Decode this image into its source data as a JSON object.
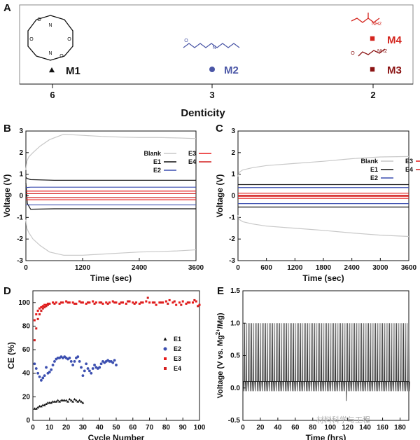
{
  "figure": {
    "watermark": "材料科学与工程",
    "colors": {
      "black": "#111111",
      "gray": "#c8c8c8",
      "navy": "#1f2a5a",
      "blue": "#4a56a6",
      "red": "#d4241d",
      "darkred": "#8b1414",
      "series_E1": "#111111",
      "series_E2": "#3c4fb0",
      "series_E3": "#e81c1c",
      "series_E4": "#d42020"
    }
  },
  "chart_data": [
    {
      "panel": "A",
      "type": "scatter",
      "title": "",
      "xlabel": "Denticity",
      "ylabel": "",
      "x_categories": [
        "6",
        "3",
        "2"
      ],
      "points": [
        {
          "name": "M1",
          "denticity": 6,
          "marker": "triangle",
          "color": "#111111"
        },
        {
          "name": "M2",
          "denticity": 3,
          "marker": "circle",
          "color": "#4a56a6"
        },
        {
          "name": "M4",
          "denticity": 2,
          "marker": "square",
          "color": "#d4241d"
        },
        {
          "name": "M3",
          "denticity": 2,
          "marker": "square",
          "color": "#8b1414"
        }
      ],
      "structure_labels": [
        "N",
        "N",
        "O",
        "O",
        "O",
        "O",
        "NH2",
        "NH2",
        "O",
        "N",
        "O"
      ]
    },
    {
      "panel": "B",
      "type": "line",
      "xlabel": "Time (sec)",
      "ylabel": "Voltage (V)",
      "xlim": [
        0,
        3600
      ],
      "ylim": [
        -3,
        3
      ],
      "xticks": [
        0,
        1200,
        2400,
        3600
      ],
      "yticks": [
        -3,
        -2,
        -1,
        0,
        1,
        2,
        3
      ],
      "legend": [
        "Blank",
        "E1",
        "E2",
        "E3",
        "E4"
      ],
      "legend_position": "upper-right",
      "series": [
        {
          "name": "Blank",
          "color": "#c8c8c8",
          "x": [
            0,
            20,
            60,
            150,
            300,
            500,
            800,
            1200,
            1600,
            2000,
            2400,
            2800,
            3200,
            3600
          ],
          "y": [
            1.2,
            1.6,
            1.8,
            2.0,
            2.3,
            2.6,
            2.85,
            2.8,
            2.75,
            2.72,
            2.7,
            2.7,
            2.68,
            2.65
          ]
        },
        {
          "name": "Blank-reduction",
          "color": "#c8c8c8",
          "x": [
            0,
            20,
            60,
            150,
            300,
            500,
            800,
            1200,
            1600,
            2000,
            2400,
            2800,
            3200,
            3600
          ],
          "y": [
            -1.1,
            -1.5,
            -1.7,
            -2.0,
            -2.3,
            -2.6,
            -2.75,
            -2.75,
            -2.7,
            -2.65,
            -2.6,
            -2.58,
            -2.55,
            -2.5
          ]
        },
        {
          "name": "E1",
          "color": "#111111",
          "x": [
            0,
            30,
            100,
            600,
            1200,
            2400,
            3600
          ],
          "y": [
            0.85,
            0.8,
            0.75,
            0.72,
            0.72,
            0.72,
            0.72
          ]
        },
        {
          "name": "E1-reduction",
          "color": "#111111",
          "x": [
            0,
            30,
            100,
            600,
            1200,
            2400,
            3600
          ],
          "y": [
            0.6,
            -0.35,
            -0.62,
            -0.6,
            -0.6,
            -0.6,
            -0.6
          ]
        },
        {
          "name": "E2",
          "color": "#3c4fb0",
          "x": [
            0,
            100,
            1200,
            2400,
            3600
          ],
          "y": [
            0.38,
            0.4,
            0.4,
            0.4,
            0.4
          ]
        },
        {
          "name": "E2-reduction",
          "color": "#3c4fb0",
          "x": [
            0,
            100,
            1200,
            2400,
            3600
          ],
          "y": [
            -0.42,
            -0.42,
            -0.42,
            -0.42,
            -0.42
          ]
        },
        {
          "name": "E3",
          "color": "#e81c1c",
          "x": [
            0,
            3600
          ],
          "y": [
            0.22,
            0.22
          ]
        },
        {
          "name": "E3-reduction",
          "color": "#e81c1c",
          "x": [
            0,
            3600
          ],
          "y": [
            -0.18,
            -0.18
          ]
        },
        {
          "name": "E4",
          "color": "#d42020",
          "x": [
            0,
            3600
          ],
          "y": [
            0.1,
            0.1
          ]
        },
        {
          "name": "E4-reduction",
          "color": "#d42020",
          "x": [
            0,
            3600
          ],
          "y": [
            -0.08,
            -0.08
          ]
        }
      ]
    },
    {
      "panel": "C",
      "type": "line",
      "xlabel": "Time (sec)",
      "ylabel": "Voltage (V)",
      "xlim": [
        0,
        3600
      ],
      "ylim": [
        -3,
        3
      ],
      "xticks": [
        0,
        600,
        1200,
        1800,
        2400,
        3000,
        3600
      ],
      "yticks": [
        -3,
        -2,
        -1,
        0,
        1,
        2,
        3
      ],
      "legend": [
        "Blank",
        "E1",
        "E2",
        "E3",
        "E4"
      ],
      "legend_position": "upper-right",
      "series": [
        {
          "name": "Blank",
          "color": "#c8c8c8",
          "x": [
            0,
            30,
            100,
            300,
            600,
            1200,
            1800,
            2400,
            3000,
            3600
          ],
          "y": [
            0.9,
            1.1,
            1.2,
            1.3,
            1.4,
            1.5,
            1.6,
            1.72,
            1.8,
            1.82
          ]
        },
        {
          "name": "Blank-reduction",
          "color": "#c8c8c8",
          "x": [
            0,
            30,
            100,
            300,
            600,
            1200,
            1800,
            2400,
            3000,
            3600
          ],
          "y": [
            -0.9,
            -1.1,
            -1.2,
            -1.3,
            -1.4,
            -1.5,
            -1.6,
            -1.72,
            -1.82,
            -1.88
          ]
        },
        {
          "name": "E1",
          "color": "#111111",
          "x": [
            0,
            3600
          ],
          "y": [
            0.52,
            0.52
          ]
        },
        {
          "name": "E1-reduction",
          "color": "#111111",
          "x": [
            0,
            3600
          ],
          "y": [
            -0.52,
            -0.52
          ]
        },
        {
          "name": "E2",
          "color": "#3c4fb0",
          "x": [
            0,
            3600
          ],
          "y": [
            0.38,
            0.38
          ]
        },
        {
          "name": "E2-reduction",
          "color": "#3c4fb0",
          "x": [
            0,
            3600
          ],
          "y": [
            -0.36,
            -0.36
          ]
        },
        {
          "name": "E3",
          "color": "#e81c1c",
          "x": [
            0,
            3600
          ],
          "y": [
            0.12,
            0.12
          ]
        },
        {
          "name": "E3-reduction",
          "color": "#e81c1c",
          "x": [
            0,
            3600
          ],
          "y": [
            -0.12,
            -0.12
          ]
        },
        {
          "name": "E4",
          "color": "#d42020",
          "x": [
            0,
            3600
          ],
          "y": [
            0.02,
            0.02
          ]
        },
        {
          "name": "E4-reduction",
          "color": "#d42020",
          "x": [
            0,
            3600
          ],
          "y": [
            -0.02,
            -0.02
          ]
        }
      ]
    },
    {
      "panel": "D",
      "type": "scatter",
      "xlabel": "Cycle Number",
      "ylabel": "CE (%)",
      "xlim": [
        0,
        100
      ],
      "ylim": [
        0,
        110
      ],
      "xticks": [
        0,
        10,
        20,
        30,
        40,
        50,
        60,
        70,
        80,
        90,
        100
      ],
      "yticks": [
        0,
        20,
        40,
        60,
        80,
        100
      ],
      "legend": [
        "E1",
        "E2",
        "E3",
        "E4"
      ],
      "legend_position": "right",
      "series": [
        {
          "name": "E1",
          "marker": "triangle",
          "color": "#111111",
          "x": [
            1,
            2,
            3,
            4,
            5,
            6,
            7,
            8,
            9,
            10,
            11,
            12,
            13,
            14,
            15,
            16,
            17,
            18,
            19,
            20,
            21,
            22,
            23,
            24,
            25,
            26,
            27,
            28,
            29,
            30
          ],
          "y": [
            10,
            10,
            11,
            12,
            12,
            13,
            13,
            14,
            15,
            15,
            15,
            16,
            16,
            16,
            17,
            16,
            17,
            17,
            17,
            17,
            16,
            18,
            17,
            16,
            18,
            17,
            16,
            17,
            16,
            15
          ]
        },
        {
          "name": "E2",
          "marker": "circle",
          "color": "#3c4fb0",
          "x": [
            1,
            2,
            3,
            4,
            5,
            6,
            7,
            8,
            9,
            10,
            11,
            12,
            13,
            14,
            15,
            16,
            17,
            18,
            19,
            20,
            21,
            22,
            23,
            24,
            25,
            26,
            27,
            28,
            29,
            30,
            31,
            32,
            33,
            34,
            35,
            36,
            37,
            38,
            39,
            40,
            41,
            42,
            43,
            44,
            45,
            46,
            47,
            48,
            49,
            50
          ],
          "y": [
            48,
            44,
            40,
            37,
            34,
            36,
            38,
            45,
            40,
            41,
            43,
            47,
            50,
            52,
            53,
            53,
            54,
            53,
            54,
            53,
            52,
            53,
            50,
            47,
            50,
            53,
            54,
            50,
            45,
            38,
            42,
            48,
            44,
            42,
            40,
            44,
            47,
            45,
            44,
            45,
            48,
            50,
            49,
            50,
            51,
            50,
            50,
            49,
            51,
            47
          ]
        },
        {
          "name": "E3",
          "marker": "square",
          "color": "#e81c1c",
          "x": [
            1,
            2,
            3,
            4,
            5,
            6,
            7,
            8,
            9,
            10,
            12,
            14,
            16,
            18,
            20,
            22,
            24,
            26,
            28,
            30,
            32,
            34,
            36,
            38,
            40,
            42,
            44,
            46,
            48,
            50,
            52,
            54,
            56,
            58,
            60,
            62,
            64,
            66,
            68,
            70,
            72,
            74,
            76,
            78,
            80,
            82,
            84,
            86,
            88,
            90,
            92,
            94,
            96,
            98,
            100
          ],
          "y": [
            85,
            90,
            93,
            95,
            96,
            97,
            98,
            98,
            99,
            99,
            100,
            100,
            99,
            100,
            101,
            100,
            100,
            99,
            101,
            100,
            99,
            100,
            101,
            100,
            100,
            99,
            100,
            100,
            101,
            100,
            99,
            100,
            99,
            101,
            100,
            100,
            99,
            100,
            101,
            100,
            100,
            98,
            100,
            100,
            101,
            102,
            100,
            98,
            100,
            101,
            99,
            100,
            100,
            101,
            98
          ]
        },
        {
          "name": "E4",
          "marker": "square",
          "color": "#d42020",
          "x": [
            1,
            2,
            3,
            4,
            5,
            6,
            7,
            8,
            9,
            10,
            13,
            17,
            21,
            25,
            29,
            33,
            37,
            41,
            45,
            49,
            53,
            57,
            61,
            65,
            69,
            73,
            77,
            81,
            85,
            89,
            93,
            97,
            99
          ],
          "y": [
            68,
            78,
            86,
            90,
            93,
            95,
            96,
            97,
            98,
            99,
            99,
            100,
            100,
            99,
            100,
            100,
            99,
            100,
            99,
            100,
            100,
            101,
            99,
            100,
            104,
            100,
            100,
            99,
            101,
            98,
            100,
            102,
            97
          ]
        }
      ]
    },
    {
      "panel": "E",
      "type": "line",
      "xlabel": "Time (hrs)",
      "ylabel": "Voltage (V vs. Mg2+/Mg)",
      "ylabel_parts": {
        "before": "Voltage (V vs. Mg",
        "sup": "2+",
        "after": "/Mg)"
      },
      "xlim": [
        0,
        190
      ],
      "ylim": [
        -0.5,
        1.5
      ],
      "xticks": [
        0,
        20,
        40,
        60,
        80,
        100,
        120,
        140,
        160,
        180
      ],
      "yticks": [
        -0.5,
        0.0,
        0.5,
        1.0,
        1.5
      ],
      "series": [
        {
          "name": "cycling",
          "color": "#111111",
          "spike_period_hrs": 2,
          "spike_max_V": 1.0,
          "plateau_V": 0.1,
          "low_V": -0.05,
          "initial_dip_V": -0.3,
          "dip_at_hrs": 118,
          "dip_V": -0.2
        }
      ]
    }
  ]
}
